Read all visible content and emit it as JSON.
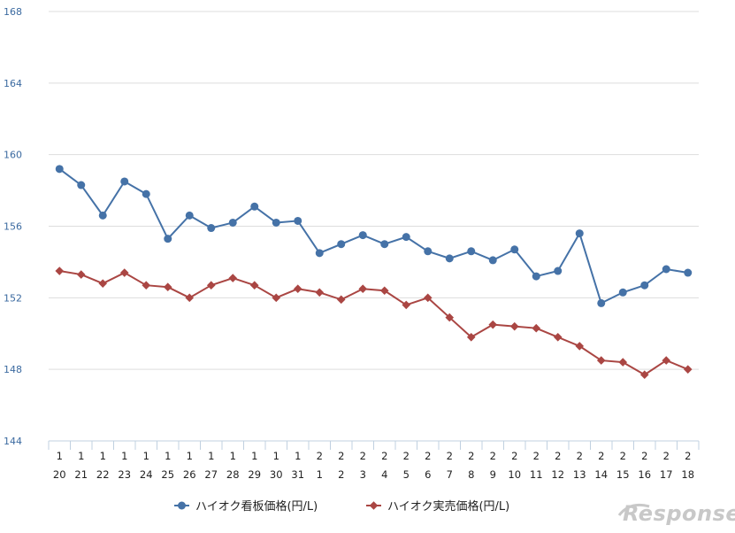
{
  "chart_data": {
    "type": "line",
    "categories": [
      [
        "1",
        "20"
      ],
      [
        "1",
        "21"
      ],
      [
        "1",
        "22"
      ],
      [
        "1",
        "23"
      ],
      [
        "1",
        "24"
      ],
      [
        "1",
        "25"
      ],
      [
        "1",
        "26"
      ],
      [
        "1",
        "27"
      ],
      [
        "1",
        "28"
      ],
      [
        "1",
        "29"
      ],
      [
        "1",
        "30"
      ],
      [
        "1",
        "31"
      ],
      [
        "2",
        "1"
      ],
      [
        "2",
        "2"
      ],
      [
        "2",
        "3"
      ],
      [
        "2",
        "4"
      ],
      [
        "2",
        "5"
      ],
      [
        "2",
        "6"
      ],
      [
        "2",
        "7"
      ],
      [
        "2",
        "8"
      ],
      [
        "2",
        "9"
      ],
      [
        "2",
        "10"
      ],
      [
        "2",
        "11"
      ],
      [
        "2",
        "12"
      ],
      [
        "2",
        "13"
      ],
      [
        "2",
        "14"
      ],
      [
        "2",
        "15"
      ],
      [
        "2",
        "16"
      ],
      [
        "2",
        "17"
      ],
      [
        "2",
        "18"
      ]
    ],
    "ylim": [
      144,
      168
    ],
    "yticks": [
      144,
      148,
      152,
      156,
      160,
      164,
      168
    ],
    "grid": true,
    "legend_position": "bottom",
    "series": [
      {
        "name": "ハイオク看板価格(円/L)",
        "color": "#4572a7",
        "marker": "circle",
        "values": [
          159.2,
          158.3,
          156.6,
          158.5,
          157.8,
          155.3,
          156.6,
          155.9,
          156.2,
          157.1,
          156.2,
          156.3,
          154.5,
          155.0,
          155.5,
          155.0,
          155.4,
          154.6,
          154.2,
          154.6,
          154.1,
          154.7,
          153.2,
          153.5,
          155.6,
          151.7,
          152.3,
          152.7,
          153.6,
          153.4
        ]
      },
      {
        "name": "ハイオク実売価格(円/L)",
        "color": "#aa4643",
        "marker": "diamond",
        "values": [
          153.5,
          153.3,
          152.8,
          153.4,
          152.7,
          152.6,
          152.0,
          152.7,
          153.1,
          152.7,
          152.0,
          152.5,
          152.3,
          151.9,
          152.5,
          152.4,
          151.6,
          152.0,
          150.9,
          149.8,
          150.5,
          150.4,
          150.3,
          149.8,
          149.3,
          148.5,
          148.4,
          147.7,
          148.5,
          148.0
        ]
      }
    ]
  },
  "watermark": {
    "text": "Response."
  }
}
